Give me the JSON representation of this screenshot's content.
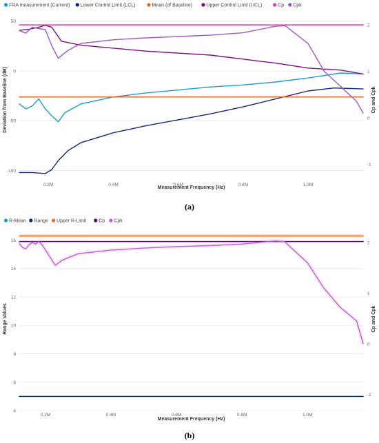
{
  "chart_data": [
    {
      "type": "line",
      "caption": "(a)",
      "xlabel": "Measurement Frequency (Hz)",
      "ylabel": "Deviation from Baseline (dB)",
      "y2label": "Cp and Cpk",
      "xlim": [
        0.11,
        1.17
      ],
      "ylim": [
        -110,
        52
      ],
      "y2lim": [
        -1.35,
        2.12
      ],
      "x_ticks": [
        {
          "v": 0.2,
          "label": "0.2M"
        },
        {
          "v": 0.4,
          "label": "0.4M"
        },
        {
          "v": 0.6,
          "label": "0.6M"
        },
        {
          "v": 0.8,
          "label": "0.8M"
        },
        {
          "v": 1.0,
          "label": "1.0M"
        }
      ],
      "y_ticks": [
        {
          "v": 50,
          "label": "50"
        },
        {
          "v": 0,
          "label": "0"
        },
        {
          "v": -50,
          "label": "-50"
        },
        {
          "v": -100,
          "label": "-100"
        }
      ],
      "y2_ticks": [
        {
          "v": 2,
          "label": "2"
        },
        {
          "v": 1,
          "label": "1"
        },
        {
          "v": 0,
          "label": "0"
        },
        {
          "v": -1,
          "label": "-1"
        }
      ],
      "legend_position": "top-left",
      "series": [
        {
          "name": "FRA measurement (Current)",
          "color": "#1a9bd7",
          "axis": "left",
          "x": [
            0.11,
            0.13,
            0.15,
            0.17,
            0.19,
            0.21,
            0.23,
            0.25,
            0.3,
            0.4,
            0.5,
            0.6,
            0.7,
            0.8,
            0.9,
            1.0,
            1.1,
            1.17
          ],
          "y": [
            -33,
            -38,
            -35,
            -28,
            -38,
            -45,
            -51,
            -42,
            -33,
            -26,
            -22,
            -19,
            -16,
            -14,
            -11,
            -7,
            -2,
            -3
          ]
        },
        {
          "name": "Lower Control Limit (LCL)",
          "color": "#15267a",
          "axis": "left",
          "x": [
            0.11,
            0.15,
            0.19,
            0.21,
            0.23,
            0.26,
            0.3,
            0.4,
            0.5,
            0.6,
            0.7,
            0.8,
            0.9,
            1.0,
            1.08,
            1.17
          ],
          "y": [
            -102,
            -102,
            -103,
            -99,
            -90,
            -80,
            -72,
            -62,
            -55,
            -49,
            -43,
            -36,
            -28,
            -20,
            -17,
            -18
          ]
        },
        {
          "name": "Mean (of Baseline)",
          "color": "#ee6a2b",
          "axis": "left",
          "x": [
            0.11,
            1.17
          ],
          "y": [
            -26,
            -26
          ]
        },
        {
          "name": "Upper Control Limit (UCL)",
          "color": "#7d0d7d",
          "axis": "left",
          "x": [
            0.11,
            0.14,
            0.17,
            0.19,
            0.21,
            0.24,
            0.3,
            0.4,
            0.5,
            0.6,
            0.7,
            0.8,
            0.9,
            1.0,
            1.1,
            1.17
          ],
          "y": [
            41,
            42,
            44,
            46,
            44,
            30,
            26,
            23,
            20,
            18,
            16,
            12,
            8,
            3,
            1,
            -3
          ]
        },
        {
          "name": "Cp",
          "color": "#e040a8",
          "axis": "right",
          "x": [
            0.11,
            1.17
          ],
          "y": [
            2.0,
            2.0
          ]
        },
        {
          "name": "Cpk",
          "color": "#9b59c8",
          "axis": "right",
          "x": [
            0.11,
            0.13,
            0.15,
            0.17,
            0.19,
            0.21,
            0.23,
            0.26,
            0.3,
            0.4,
            0.5,
            0.6,
            0.7,
            0.8,
            0.9,
            0.93,
            1.0,
            1.05,
            1.1,
            1.15,
            1.17
          ],
          "y": [
            1.88,
            1.82,
            1.95,
            1.92,
            1.9,
            1.55,
            1.28,
            1.45,
            1.6,
            1.68,
            1.72,
            1.75,
            1.78,
            1.83,
            1.97,
            1.98,
            1.6,
            1.0,
            0.68,
            0.35,
            0.1
          ]
        }
      ]
    },
    {
      "type": "line",
      "caption": "(b)",
      "xlabel": "Measurement Frequency (Hz)",
      "ylabel": "Range Values",
      "y2label": "Cp and Cpk",
      "xlim": [
        0.12,
        1.17
      ],
      "ylim": [
        4,
        16.9
      ],
      "y2lim": [
        -1.32,
        2.3
      ],
      "x_ticks": [
        {
          "v": 0.2,
          "label": "0.2M"
        },
        {
          "v": 0.4,
          "label": "0.4M"
        },
        {
          "v": 0.6,
          "label": "0.6M"
        },
        {
          "v": 0.8,
          "label": "0.8M"
        },
        {
          "v": 1.0,
          "label": "1.0M"
        }
      ],
      "y_ticks": [
        {
          "v": 16,
          "label": "16"
        },
        {
          "v": 14,
          "label": "14"
        },
        {
          "v": 12,
          "label": "12"
        },
        {
          "v": 10,
          "label": "10"
        },
        {
          "v": 8,
          "label": "8"
        },
        {
          "v": 6,
          "label": "6"
        },
        {
          "v": 4,
          "label": "4"
        }
      ],
      "y2_ticks": [
        {
          "v": 2,
          "label": "2"
        },
        {
          "v": 1,
          "label": "1"
        },
        {
          "v": 0,
          "label": "0"
        },
        {
          "v": -1,
          "label": "-1"
        }
      ],
      "legend_position": "top-left",
      "series": [
        {
          "name": "R-Mean",
          "color": "#1a9bd7",
          "axis": "left",
          "x": [
            0.12,
            1.17
          ],
          "y": [
            5.0,
            5.0
          ]
        },
        {
          "name": "Range",
          "color": "#15267a",
          "axis": "left",
          "x": [
            0.12,
            1.17
          ],
          "y": [
            5.0,
            5.0
          ]
        },
        {
          "name": "Upper R-Limit",
          "color": "#ee6a2b",
          "axis": "left",
          "x": [
            0.12,
            1.17
          ],
          "y": [
            16.3,
            16.3
          ]
        },
        {
          "name": "Cp",
          "color": "#5a0d6e",
          "axis": "right",
          "x": [
            0.12,
            1.17
          ],
          "y": [
            2.02,
            2.02
          ]
        },
        {
          "name": "Cpk",
          "color": "#c060c8",
          "axis": "right",
          "x": [
            0.12,
            0.13,
            0.14,
            0.15,
            0.16,
            0.17,
            0.18,
            0.19,
            0.21,
            0.23,
            0.25,
            0.3,
            0.4,
            0.5,
            0.6,
            0.7,
            0.8,
            0.9,
            0.93,
            1.0,
            1.05,
            1.1,
            1.15,
            1.17
          ],
          "y": [
            1.98,
            1.9,
            1.88,
            1.96,
            2.0,
            1.97,
            2.02,
            1.95,
            1.75,
            1.55,
            1.65,
            1.78,
            1.85,
            1.89,
            1.92,
            1.94,
            1.97,
            2.03,
            2.02,
            1.6,
            1.1,
            0.72,
            0.45,
            0.0
          ]
        }
      ]
    }
  ]
}
